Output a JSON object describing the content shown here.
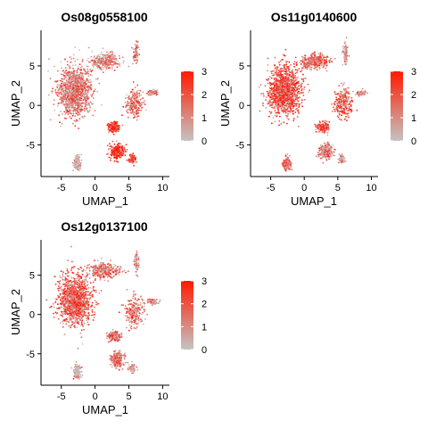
{
  "colors": {
    "low": "#c4c4c4",
    "high": "#ff0000",
    "axis": "#000000"
  },
  "chart_data": [
    {
      "type": "scatter",
      "title": "Os08g0558100",
      "xlabel": "UMAP_1",
      "ylabel": "UMAP_2",
      "xlim": [
        -8,
        11
      ],
      "ylim": [
        -9,
        9.5
      ],
      "xticks": [
        -5,
        0,
        5,
        10
      ],
      "yticks": [
        -5,
        0,
        5
      ],
      "xtick_labels": [
        "-5",
        "0",
        "5",
        "10"
      ],
      "ytick_labels": [
        "-5",
        "0",
        "5"
      ],
      "legend": {
        "placement": "right",
        "min": 0,
        "max": 3,
        "ticks": [
          0,
          1,
          2,
          3
        ],
        "tick_labels": [
          "0",
          "1",
          "2",
          "3"
        ]
      },
      "grid": false,
      "clusters": [
        {
          "name": "main blob",
          "x": -3.0,
          "y": 1.8,
          "sx": 2.2,
          "sy": 2.8,
          "n": 1200,
          "mean_expression": 1.3
        },
        {
          "name": "upper lobe",
          "x": 1.5,
          "y": 5.6,
          "sx": 2.0,
          "sy": 0.9,
          "n": 300,
          "mean_expression": 1.0
        },
        {
          "name": "lower-left tail",
          "x": -2.6,
          "y": -7.3,
          "sx": 0.5,
          "sy": 0.8,
          "n": 140,
          "mean_expression": 0.3
        },
        {
          "name": "center-right",
          "x": 2.8,
          "y": -2.8,
          "sx": 0.8,
          "sy": 0.6,
          "n": 160,
          "mean_expression": 2.5
        },
        {
          "name": "lower cluster",
          "x": 3.3,
          "y": -5.8,
          "sx": 0.9,
          "sy": 0.9,
          "n": 240,
          "mean_expression": 2.4
        },
        {
          "name": "right arm",
          "x": 5.8,
          "y": 0.3,
          "sx": 1.2,
          "sy": 1.6,
          "n": 220,
          "mean_expression": 1.5
        },
        {
          "name": "top spike",
          "x": 6.1,
          "y": 6.6,
          "sx": 0.35,
          "sy": 1.2,
          "n": 80,
          "mean_expression": 1.0
        },
        {
          "name": "right tip",
          "x": 8.5,
          "y": 1.6,
          "sx": 0.8,
          "sy": 0.3,
          "n": 60,
          "mean_expression": 1.2
        },
        {
          "name": "bottom-right tail",
          "x": 5.5,
          "y": -6.8,
          "sx": 0.5,
          "sy": 0.5,
          "n": 60,
          "mean_expression": 2.0
        }
      ]
    },
    {
      "type": "scatter",
      "title": "Os11g0140600",
      "xlabel": "UMAP_1",
      "ylabel": "UMAP_2",
      "xlim": [
        -8,
        11
      ],
      "ylim": [
        -9,
        9.5
      ],
      "xticks": [
        -5,
        0,
        5,
        10
      ],
      "yticks": [
        -5,
        0,
        5
      ],
      "xtick_labels": [
        "-5",
        "0",
        "5",
        "10"
      ],
      "ytick_labels": [
        "-5",
        "0",
        "5"
      ],
      "legend": {
        "placement": "right",
        "min": 0,
        "max": 3,
        "ticks": [
          0,
          1,
          2,
          3
        ],
        "tick_labels": [
          "0",
          "1",
          "2",
          "3"
        ]
      },
      "grid": false,
      "clusters": [
        {
          "name": "main blob",
          "x": -3.0,
          "y": 1.8,
          "sx": 2.2,
          "sy": 2.8,
          "n": 1200,
          "mean_expression": 2.0
        },
        {
          "name": "upper lobe",
          "x": 1.5,
          "y": 5.6,
          "sx": 2.0,
          "sy": 0.9,
          "n": 300,
          "mean_expression": 1.7
        },
        {
          "name": "lower-left tail",
          "x": -2.6,
          "y": -7.3,
          "sx": 0.5,
          "sy": 0.8,
          "n": 140,
          "mean_expression": 1.2
        },
        {
          "name": "center-right",
          "x": 2.8,
          "y": -2.8,
          "sx": 0.8,
          "sy": 0.6,
          "n": 160,
          "mean_expression": 1.8
        },
        {
          "name": "lower cluster",
          "x": 3.3,
          "y": -5.8,
          "sx": 0.9,
          "sy": 0.9,
          "n": 240,
          "mean_expression": 1.2
        },
        {
          "name": "right arm",
          "x": 5.8,
          "y": 0.3,
          "sx": 1.2,
          "sy": 1.6,
          "n": 220,
          "mean_expression": 1.8
        },
        {
          "name": "top spike",
          "x": 6.1,
          "y": 6.6,
          "sx": 0.35,
          "sy": 1.2,
          "n": 80,
          "mean_expression": 0.8
        },
        {
          "name": "right tip",
          "x": 8.5,
          "y": 1.6,
          "sx": 0.8,
          "sy": 0.3,
          "n": 60,
          "mean_expression": 0.8
        },
        {
          "name": "bottom-right tail",
          "x": 5.5,
          "y": -6.8,
          "sx": 0.5,
          "sy": 0.5,
          "n": 60,
          "mean_expression": 0.8
        }
      ]
    },
    {
      "type": "scatter",
      "title": "Os12g0137100",
      "xlabel": "UMAP_1",
      "ylabel": "UMAP_2",
      "xlim": [
        -8,
        11
      ],
      "ylim": [
        -9,
        9.5
      ],
      "xticks": [
        -5,
        0,
        5,
        10
      ],
      "yticks": [
        -5,
        0,
        5
      ],
      "xtick_labels": [
        "-5",
        "0",
        "5",
        "10"
      ],
      "ytick_labels": [
        "-5",
        "0",
        "5"
      ],
      "legend": {
        "placement": "right",
        "min": 0,
        "max": 3,
        "ticks": [
          0,
          1,
          2,
          3
        ],
        "tick_labels": [
          "0",
          "1",
          "2",
          "3"
        ]
      },
      "grid": false,
      "clusters": [
        {
          "name": "main blob",
          "x": -3.0,
          "y": 1.8,
          "sx": 2.2,
          "sy": 2.8,
          "n": 1200,
          "mean_expression": 1.8
        },
        {
          "name": "upper lobe",
          "x": 1.5,
          "y": 5.6,
          "sx": 2.0,
          "sy": 0.9,
          "n": 300,
          "mean_expression": 1.2
        },
        {
          "name": "lower-left tail",
          "x": -2.6,
          "y": -7.3,
          "sx": 0.5,
          "sy": 0.8,
          "n": 140,
          "mean_expression": 0.4
        },
        {
          "name": "center-right",
          "x": 2.8,
          "y": -2.8,
          "sx": 0.8,
          "sy": 0.6,
          "n": 160,
          "mean_expression": 1.5
        },
        {
          "name": "lower cluster",
          "x": 3.3,
          "y": -5.8,
          "sx": 0.9,
          "sy": 0.9,
          "n": 240,
          "mean_expression": 1.2
        },
        {
          "name": "right arm",
          "x": 5.8,
          "y": 0.3,
          "sx": 1.2,
          "sy": 1.6,
          "n": 220,
          "mean_expression": 1.4
        },
        {
          "name": "top spike",
          "x": 6.1,
          "y": 6.6,
          "sx": 0.35,
          "sy": 1.2,
          "n": 80,
          "mean_expression": 0.6
        },
        {
          "name": "right tip",
          "x": 8.5,
          "y": 1.6,
          "sx": 0.8,
          "sy": 0.3,
          "n": 60,
          "mean_expression": 0.8
        },
        {
          "name": "bottom-right tail",
          "x": 5.5,
          "y": -6.8,
          "sx": 0.5,
          "sy": 0.5,
          "n": 60,
          "mean_expression": 0.7
        }
      ]
    }
  ]
}
